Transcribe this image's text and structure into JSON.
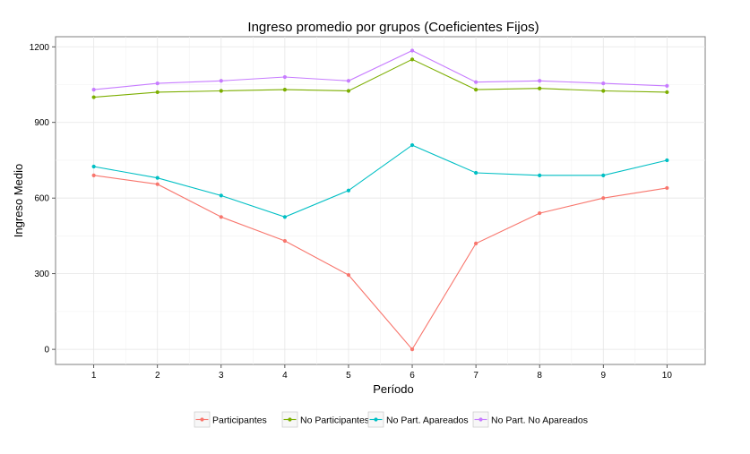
{
  "chart_data": {
    "type": "line",
    "title": "Ingreso promedio por grupos (Coeficientes Fijos)",
    "xlabel": "Período",
    "ylabel": "Ingreso Medio",
    "x": [
      1,
      2,
      3,
      4,
      5,
      6,
      7,
      8,
      9,
      10
    ],
    "x_ticks": [
      "1",
      "2",
      "3",
      "4",
      "5",
      "6",
      "7",
      "8",
      "9",
      "10"
    ],
    "y_ticks": [
      "0",
      "300",
      "600",
      "900",
      "1200"
    ],
    "xlim": [
      0.4,
      10.6
    ],
    "ylim": [
      -60,
      1240
    ],
    "grid": true,
    "legend_position": "bottom",
    "series": [
      {
        "name": "Participantes",
        "color": "#F8766D",
        "values": [
          690,
          655,
          525,
          430,
          295,
          0,
          420,
          540,
          600,
          640
        ]
      },
      {
        "name": "No Participantes",
        "color": "#7CAE00",
        "values": [
          1000,
          1020,
          1025,
          1030,
          1025,
          1150,
          1030,
          1035,
          1025,
          1020
        ]
      },
      {
        "name": "No Part. Apareados",
        "color": "#00BFC4",
        "values": [
          725,
          680,
          610,
          525,
          630,
          810,
          700,
          690,
          690,
          750
        ]
      },
      {
        "name": "No Part. No Apareados",
        "color": "#C77CFF",
        "values": [
          1030,
          1055,
          1065,
          1080,
          1065,
          1185,
          1060,
          1065,
          1055,
          1045
        ]
      }
    ]
  }
}
